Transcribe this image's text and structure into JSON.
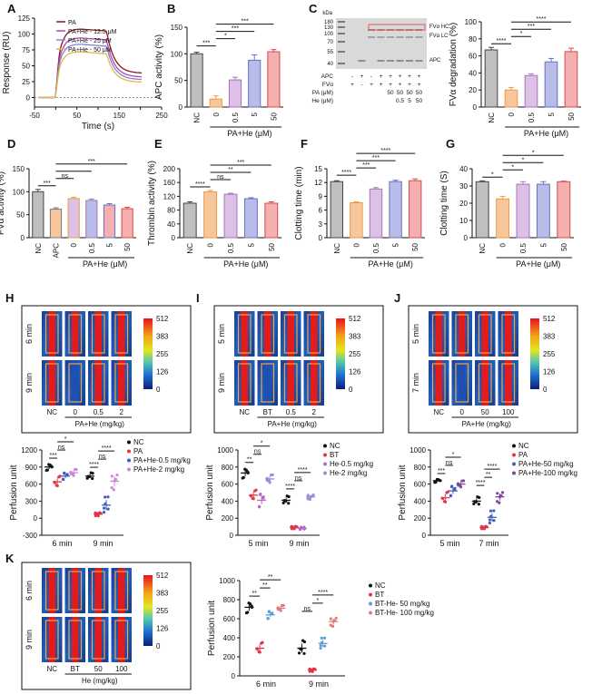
{
  "figure": {
    "panel_labels": [
      "A",
      "B",
      "C",
      "D",
      "E",
      "F",
      "G",
      "H",
      "I",
      "J",
      "K"
    ],
    "colorbar_ticks": [
      "512",
      "383",
      "255",
      "126",
      "0"
    ],
    "heatmap_time_labels": {
      "H": [
        "6 min",
        "9 min"
      ],
      "I": [
        "5 min",
        "9 min"
      ],
      "J": [
        "5 min",
        "7 min"
      ],
      "K": [
        "6 min",
        "9 min"
      ]
    },
    "heatmap_col_labels": {
      "H": [
        "NC",
        "0",
        "0.5",
        "2"
      ],
      "I": [
        "NC",
        "BT",
        "0.5",
        "2"
      ],
      "J": [
        "NC",
        "0",
        "50",
        "100"
      ],
      "K": [
        "NC",
        "BT",
        "50",
        "100"
      ]
    },
    "heatmap_group_labels": {
      "H": "PA+He (mg/kg)",
      "I": "PA+He (mg/kg)",
      "J": "PA+He (mg/kg)",
      "K": "He (mg/kg)"
    },
    "gel": {
      "kda_label": "kDa",
      "markers": [
        "180",
        "130",
        "100",
        "70",
        "55",
        "40"
      ],
      "band_labels": [
        "FVα HC",
        "FVα LC",
        "APC"
      ],
      "row_labels": [
        "APC",
        "FVα",
        "PA (μM)",
        "He (μM)"
      ],
      "rows": [
        [
          "-",
          "+",
          "-",
          "+",
          "+",
          "+",
          "+",
          "+"
        ],
        [
          "+",
          "-",
          "+",
          "+",
          "+",
          "+",
          "+",
          "+"
        ],
        [
          "",
          "",
          "",
          "",
          "50",
          "50",
          "50",
          "50"
        ],
        [
          "",
          "",
          "",
          "",
          "",
          "0.5",
          "5",
          "50"
        ]
      ]
    }
  },
  "chart_data": [
    {
      "panel": "A",
      "type": "line",
      "title": "",
      "xlabel": "Time (s)",
      "ylabel": "Response (RU)",
      "xlim": [
        -50,
        250
      ],
      "ylim": [
        -15,
        125
      ],
      "xticks": [
        -50,
        0,
        50,
        100,
        150,
        200,
        250
      ],
      "yticks": [
        0,
        25,
        50,
        75,
        100,
        125
      ],
      "legend": [
        "PA",
        "PA+He - 12.5 μM",
        "PA+He - 25 μM",
        "PA+He - 50 μM"
      ],
      "series": [
        {
          "name": "PA",
          "color": "#8b1a1a",
          "plateau": 108,
          "end": 38
        },
        {
          "name": "PA+He - 12.5 μM",
          "color": "#b04ab8",
          "plateau": 94,
          "end": 32
        },
        {
          "name": "PA+He - 25 μM",
          "color": "#7d86d0",
          "plateau": 84,
          "end": 28
        },
        {
          "name": "PA+He - 50 μM",
          "color": "#e6b64a",
          "plateau": 72,
          "end": 24
        }
      ]
    },
    {
      "panel": "B",
      "type": "bar",
      "ylabel": "APC activity (%)",
      "ylim": [
        0,
        150
      ],
      "yticks": [
        0,
        50,
        100,
        150
      ],
      "categories": [
        "NC",
        "0",
        "0.5",
        "5",
        "50"
      ],
      "values": [
        100,
        15,
        51,
        88,
        104
      ],
      "errors": [
        3,
        6,
        5,
        10,
        4
      ],
      "xgroup": "PA+He (μM)",
      "sig": [
        {
          "a": 0,
          "b": 1,
          "text": "***"
        },
        {
          "a": 1,
          "b": 2,
          "text": "*"
        },
        {
          "a": 1,
          "b": 3,
          "text": "***"
        },
        {
          "a": 1,
          "b": 4,
          "text": "***"
        }
      ]
    },
    {
      "panel": "C2",
      "type": "bar",
      "ylabel": "FVα degradation (%)",
      "ylim": [
        0,
        100
      ],
      "yticks": [
        0,
        20,
        40,
        60,
        80,
        100
      ],
      "categories": [
        "NC",
        "0",
        "0.5",
        "5",
        "50"
      ],
      "values": [
        67,
        20,
        37,
        53,
        65
      ],
      "errors": [
        3,
        3,
        2,
        4,
        4
      ],
      "xgroup": "PA+He (μM)",
      "sig": [
        {
          "a": 0,
          "b": 1,
          "text": "****"
        },
        {
          "a": 1,
          "b": 2,
          "text": "*"
        },
        {
          "a": 1,
          "b": 3,
          "text": "***"
        },
        {
          "a": 1,
          "b": 4,
          "text": "****"
        }
      ]
    },
    {
      "panel": "D",
      "type": "bar",
      "ylabel": "FVα activity (%)",
      "ylim": [
        0,
        150
      ],
      "yticks": [
        0,
        50,
        100,
        150
      ],
      "categories": [
        "NC",
        "APC",
        "0",
        "0.5",
        "5",
        "50"
      ],
      "values": [
        100,
        62,
        85,
        81,
        71,
        63
      ],
      "errors": [
        5,
        3,
        3,
        3,
        3,
        3
      ],
      "xgroup": "PA+He (μM)",
      "xgroup_from": 2,
      "sig": [
        {
          "a": 0,
          "b": 1,
          "text": "***"
        },
        {
          "a": 1,
          "b": 2,
          "text": "ns"
        },
        {
          "a": 1,
          "b": 3,
          "text": ""
        },
        {
          "a": 1,
          "b": 5,
          "text": "***"
        }
      ]
    },
    {
      "panel": "E",
      "type": "bar",
      "ylabel": "Thrombin activity (%)",
      "ylim": [
        0,
        200
      ],
      "yticks": [
        0,
        40,
        80,
        120,
        160,
        200
      ],
      "categories": [
        "NC",
        "0",
        "0.5",
        "5",
        "50"
      ],
      "values": [
        100,
        133,
        126,
        113,
        100
      ],
      "errors": [
        4,
        4,
        3,
        3,
        4
      ],
      "xgroup": "PA+He (μM)",
      "sig": [
        {
          "a": 0,
          "b": 1,
          "text": "****"
        },
        {
          "a": 1,
          "b": 2,
          "text": "ns"
        },
        {
          "a": 1,
          "b": 3,
          "text": "**"
        },
        {
          "a": 1,
          "b": 4,
          "text": "***"
        }
      ]
    },
    {
      "panel": "F",
      "type": "bar",
      "ylabel": "Clotting time (min)",
      "ylim": [
        0,
        15
      ],
      "yticks": [
        0,
        3,
        6,
        9,
        12,
        15
      ],
      "categories": [
        "NC",
        "0",
        "0.5",
        "5",
        "50"
      ],
      "values": [
        12.2,
        7.6,
        10.6,
        12.2,
        12.4
      ],
      "errors": [
        0.2,
        0.2,
        0.3,
        0.3,
        0.4
      ],
      "xgroup": "PA+He (μM)",
      "sig": [
        {
          "a": 0,
          "b": 1,
          "text": "****"
        },
        {
          "a": 1,
          "b": 2,
          "text": "***"
        },
        {
          "a": 1,
          "b": 3,
          "text": "***"
        },
        {
          "a": 1,
          "b": 4,
          "text": "****"
        }
      ]
    },
    {
      "panel": "G",
      "type": "bar",
      "ylabel": "Clotting time (S)",
      "ylim": [
        0,
        40
      ],
      "yticks": [
        0,
        10,
        20,
        30,
        40
      ],
      "categories": [
        "NC",
        "0",
        "0.5",
        "5",
        "50"
      ],
      "values": [
        32.5,
        22.5,
        31,
        31,
        32.5
      ],
      "errors": [
        0.5,
        1.5,
        1.5,
        1.5,
        0.3
      ],
      "xgroup": "PA+He (μM)",
      "sig": [
        {
          "a": 0,
          "b": 1,
          "text": "*"
        },
        {
          "a": 1,
          "b": 2,
          "text": "*"
        },
        {
          "a": 1,
          "b": 3,
          "text": "*"
        },
        {
          "a": 1,
          "b": 4,
          "text": "*"
        }
      ]
    },
    {
      "panel": "H",
      "type": "scatter",
      "ylabel": "Perfusion unit",
      "ylim": [
        -300,
        1200
      ],
      "yticks": [
        -300,
        0,
        300,
        600,
        900,
        1200
      ],
      "groups": [
        "6 min",
        "9 min"
      ],
      "legend": [
        "NC",
        "PA",
        "PA+He-0.5 mg/kg",
        "PA+He-2 mg/kg"
      ],
      "means": [
        [
          900,
          640,
          740,
          800
        ],
        [
          740,
          70,
          230,
          650
        ]
      ],
      "spreads": [
        [
          60,
          100,
          60,
          60
        ],
        [
          60,
          30,
          150,
          150
        ]
      ],
      "sig": [
        {
          "g": 0,
          "a": 0,
          "b": 1,
          "text": "***"
        },
        {
          "g": 0,
          "a": 1,
          "b": 2,
          "text": "ns"
        },
        {
          "g": 0,
          "a": 1,
          "b": 3,
          "text": "*"
        },
        {
          "g": 1,
          "a": 0,
          "b": 1,
          "text": "****"
        },
        {
          "g": 1,
          "a": 1,
          "b": 2,
          "text": "ns"
        },
        {
          "g": 1,
          "a": 1,
          "b": 3,
          "text": "****"
        }
      ]
    },
    {
      "panel": "I",
      "type": "scatter",
      "ylabel": "Perfusion unit",
      "ylim": [
        0,
        1000
      ],
      "yticks": [
        0,
        200,
        400,
        600,
        800,
        1000
      ],
      "groups": [
        "5 min",
        "9 min"
      ],
      "legend": [
        "NC",
        "BT",
        "He-0.5 mg/kg",
        "He-2 mg/kg"
      ],
      "means": [
        [
          730,
          470,
          410,
          660
        ],
        [
          410,
          90,
          80,
          450
        ]
      ],
      "spreads": [
        [
          60,
          60,
          80,
          50
        ],
        [
          50,
          15,
          15,
          30
        ]
      ],
      "sig": [
        {
          "g": 0,
          "a": 0,
          "b": 1,
          "text": "**"
        },
        {
          "g": 0,
          "a": 1,
          "b": 2,
          "text": "ns"
        },
        {
          "g": 0,
          "a": 1,
          "b": 3,
          "text": "*"
        },
        {
          "g": 1,
          "a": 0,
          "b": 1,
          "text": "****"
        },
        {
          "g": 1,
          "a": 1,
          "b": 2,
          "text": "ns"
        },
        {
          "g": 1,
          "a": 1,
          "b": 3,
          "text": "****"
        }
      ]
    },
    {
      "panel": "J",
      "type": "scatter",
      "ylabel": "Perfusion unit",
      "ylim": [
        0,
        1000
      ],
      "yticks": [
        0,
        200,
        400,
        600,
        800,
        1000
      ],
      "groups": [
        "5 min",
        "7 min"
      ],
      "legend": [
        "NC",
        "PA",
        "PA+He-50 mg/kg",
        "PA+He-100 mg/kg"
      ],
      "means": [
        [
          640,
          440,
          520,
          600
        ],
        [
          400,
          90,
          210,
          450
        ]
      ],
      "spreads": [
        [
          20,
          70,
          60,
          40
        ],
        [
          50,
          15,
          80,
          70
        ]
      ],
      "sig": [
        {
          "g": 0,
          "a": 0,
          "b": 1,
          "text": "***"
        },
        {
          "g": 0,
          "a": 1,
          "b": 2,
          "text": "ns"
        },
        {
          "g": 0,
          "a": 1,
          "b": 3,
          "text": "*"
        },
        {
          "g": 1,
          "a": 0,
          "b": 1,
          "text": "****"
        },
        {
          "g": 1,
          "a": 1,
          "b": 2,
          "text": "**"
        },
        {
          "g": 1,
          "a": 1,
          "b": 3,
          "text": "****"
        }
      ]
    },
    {
      "panel": "K",
      "type": "scatter",
      "ylabel": "Perfusion unit",
      "ylim": [
        0,
        1000
      ],
      "yticks": [
        0,
        200,
        400,
        600,
        800,
        1000
      ],
      "groups": [
        "6 min",
        "9 min"
      ],
      "legend": [
        "NC",
        "BT",
        "BT-He- 50 mg/kg",
        "BT-He- 100 mg/kg"
      ],
      "means": [
        [
          720,
          290,
          640,
          710
        ],
        [
          290,
          60,
          340,
          570
        ]
      ],
      "spreads": [
        [
          60,
          60,
          40,
          30
        ],
        [
          80,
          15,
          60,
          50
        ]
      ],
      "sig": [
        {
          "g": 0,
          "a": 0,
          "b": 1,
          "text": "**"
        },
        {
          "g": 0,
          "a": 1,
          "b": 2,
          "text": "**"
        },
        {
          "g": 0,
          "a": 1,
          "b": 3,
          "text": "**"
        },
        {
          "g": 1,
          "a": 0,
          "b": 1,
          "text": "ns"
        },
        {
          "g": 1,
          "a": 1,
          "b": 2,
          "text": "*"
        },
        {
          "g": 1,
          "a": 1,
          "b": 3,
          "text": "****"
        }
      ]
    }
  ]
}
